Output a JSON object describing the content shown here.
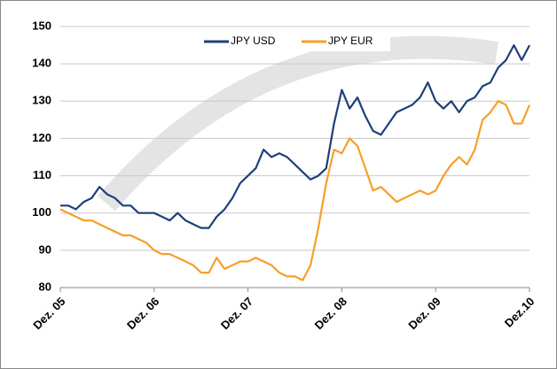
{
  "chart_data": {
    "type": "line",
    "categories": [
      "Dez. 05",
      null,
      null,
      null,
      null,
      null,
      null,
      null,
      null,
      null,
      null,
      null,
      "Dez. 06",
      null,
      null,
      null,
      null,
      null,
      null,
      null,
      null,
      null,
      null,
      null,
      "Dez. 07",
      null,
      null,
      null,
      null,
      null,
      null,
      null,
      null,
      null,
      null,
      null,
      "Dez. 08",
      null,
      null,
      null,
      null,
      null,
      null,
      null,
      null,
      null,
      null,
      null,
      "Dez. 09",
      null,
      null,
      null,
      null,
      null,
      null,
      null,
      null,
      null,
      null,
      null,
      "Dez.10"
    ],
    "series": [
      {
        "name": "JPY USD",
        "color": "#1f3f7a",
        "values": [
          102,
          102,
          101,
          103,
          104,
          107,
          105,
          104,
          102,
          102,
          100,
          100,
          100,
          99,
          98,
          100,
          98,
          97,
          96,
          96,
          99,
          101,
          104,
          108,
          110,
          112,
          117,
          115,
          116,
          115,
          113,
          111,
          109,
          110,
          112,
          124,
          133,
          128,
          131,
          126,
          122,
          121,
          124,
          127,
          128,
          129,
          131,
          135,
          130,
          128,
          130,
          127,
          130,
          131,
          134,
          135,
          139,
          141,
          145,
          141,
          145
        ]
      },
      {
        "name": "JPY EUR",
        "color": "#f5a02a",
        "values": [
          101,
          100,
          99,
          98,
          98,
          97,
          96,
          95,
          94,
          94,
          93,
          92,
          90,
          89,
          89,
          88,
          87,
          86,
          84,
          84,
          88,
          85,
          86,
          87,
          87,
          88,
          87,
          86,
          84,
          83,
          83,
          82,
          86,
          96,
          108,
          117,
          116,
          120,
          118,
          112,
          106,
          107,
          105,
          103,
          104,
          105,
          106,
          105,
          106,
          110,
          113,
          115,
          113,
          117,
          125,
          127,
          130,
          129,
          124,
          124,
          129
        ]
      }
    ],
    "ylim": [
      80,
      150
    ],
    "yticks": [
      80,
      90,
      100,
      110,
      120,
      130,
      140,
      150
    ],
    "grid": true,
    "legend": "top"
  }
}
